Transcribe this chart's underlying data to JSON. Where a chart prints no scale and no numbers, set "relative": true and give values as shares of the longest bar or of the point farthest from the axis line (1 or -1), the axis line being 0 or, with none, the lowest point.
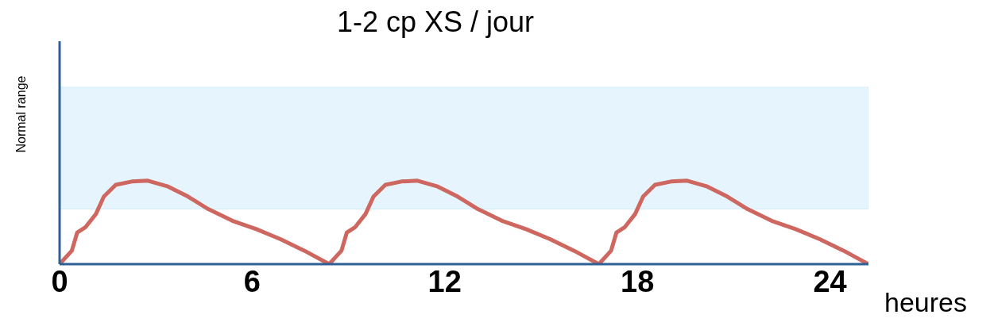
{
  "chart_data": {
    "type": "line",
    "title": "1-2 cp XS / jour",
    "xlabel": "heures",
    "ylabel": "Normal range",
    "relative": true,
    "legend": false,
    "grid": false,
    "marker": "none",
    "line_style": "solid",
    "x": [
      0,
      0.38,
      0.55,
      0.8,
      1.13,
      1.38,
      1.75,
      2.25,
      2.75,
      3.38,
      4.0,
      4.63,
      5.38,
      6.13,
      6.88,
      7.63,
      8.4,
      8.78,
      8.95,
      9.2,
      9.53,
      9.78,
      10.15,
      10.65,
      11.15,
      11.78,
      12.4,
      13.03,
      13.78,
      14.53,
      15.28,
      16.03,
      16.8,
      17.18,
      17.35,
      17.6,
      17.93,
      18.18,
      18.55,
      19.05,
      19.55,
      20.18,
      20.8,
      21.43,
      22.18,
      22.93,
      23.68,
      24.43,
      25.2
    ],
    "series": [
      {
        "color": "#cd6760",
        "values": [
          0,
          0.16,
          0.38,
          0.44,
          0.6,
          0.81,
          0.95,
          0.99,
          1,
          0.93,
          0.81,
          0.66,
          0.52,
          0.42,
          0.3,
          0.16,
          0,
          0.16,
          0.38,
          0.44,
          0.6,
          0.81,
          0.95,
          0.99,
          1,
          0.93,
          0.81,
          0.66,
          0.52,
          0.42,
          0.3,
          0.16,
          0,
          0.16,
          0.38,
          0.44,
          0.6,
          0.81,
          0.95,
          0.99,
          1,
          0.93,
          0.81,
          0.66,
          0.52,
          0.42,
          0.3,
          0.16,
          0
        ]
      }
    ],
    "bands": [
      {
        "axis": "y",
        "from": 0.66,
        "to": 2.12,
        "color": "#e6f5fd"
      }
    ],
    "xlim": [
      0,
      25.2
    ],
    "xticks": [
      0,
      6,
      12,
      18,
      24
    ]
  }
}
